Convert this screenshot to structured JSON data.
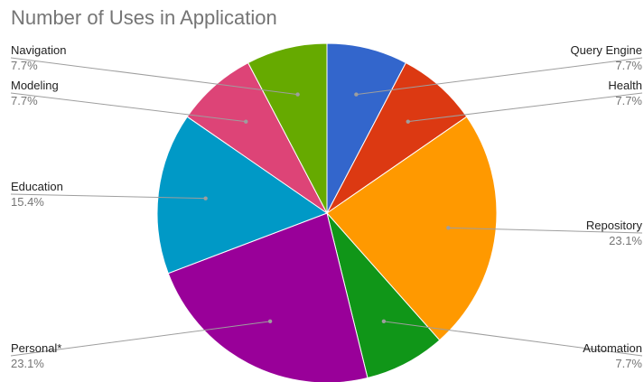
{
  "chart_data": {
    "type": "pie",
    "title": "Number of Uses in Application",
    "slices": [
      {
        "label": "Query Engine",
        "value": 1,
        "percent_label": "7.7%",
        "color": "#3366cc"
      },
      {
        "label": "Health",
        "value": 1,
        "percent_label": "7.7%",
        "color": "#dc3912"
      },
      {
        "label": "Repository",
        "value": 3,
        "percent_label": "23.1%",
        "color": "#ff9900"
      },
      {
        "label": "Automation",
        "value": 1,
        "percent_label": "7.7%",
        "color": "#109618"
      },
      {
        "label": "Personal*",
        "value": 3,
        "percent_label": "23.1%",
        "color": "#990099"
      },
      {
        "label": "Education",
        "value": 2,
        "percent_label": "15.4%",
        "color": "#0099c6"
      },
      {
        "label": "Modeling",
        "value": 1,
        "percent_label": "7.7%",
        "color": "#dd4477"
      },
      {
        "label": "Navigation",
        "value": 1,
        "percent_label": "7.7%",
        "color": "#66aa00"
      }
    ],
    "start_angle": "12 o'clock",
    "direction": "clockwise",
    "legend": "none"
  }
}
